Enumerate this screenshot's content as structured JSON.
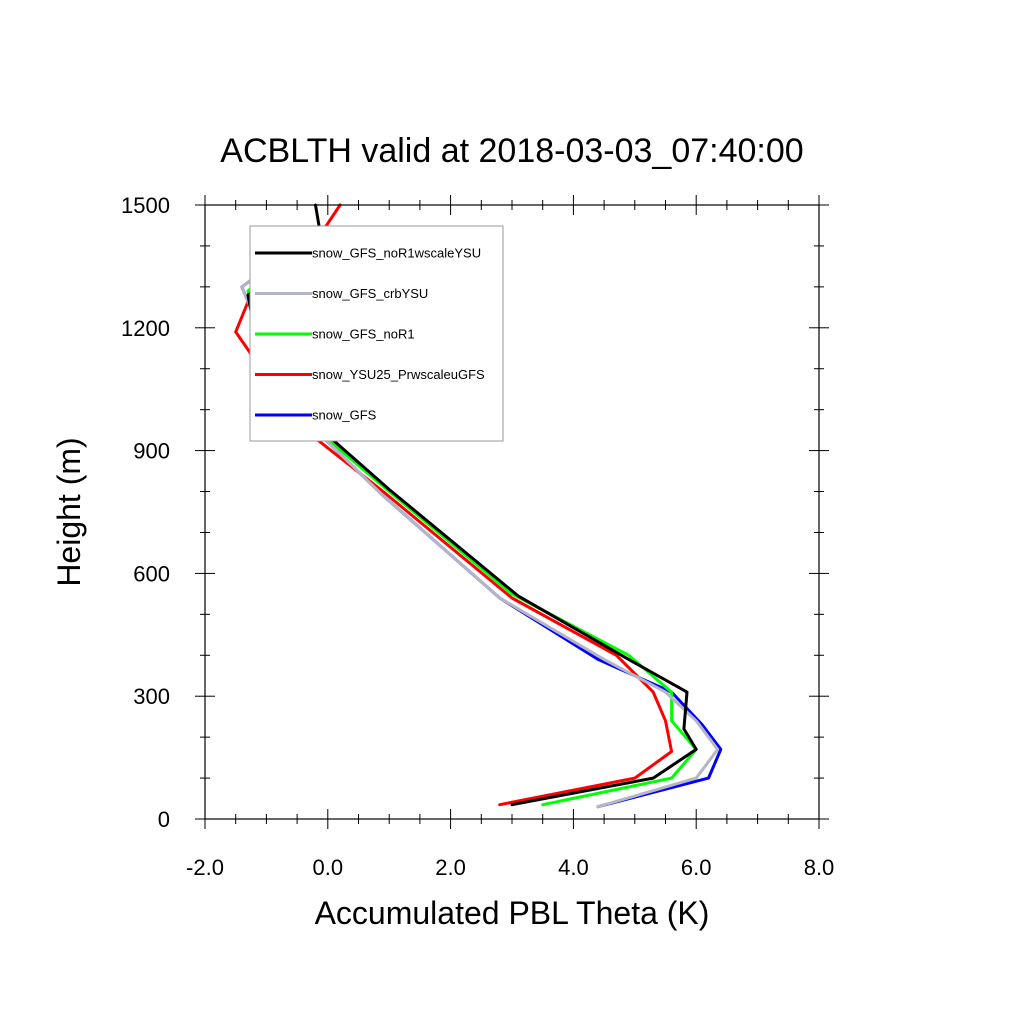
{
  "chart_data": {
    "type": "line",
    "title": "ACBLTH valid at 2018-03-03_07:40:00",
    "xlabel": "Accumulated PBL Theta (K)",
    "ylabel": "Height (m)",
    "xlim": [
      -2.0,
      8.0
    ],
    "ylim": [
      0,
      1500
    ],
    "x_ticks": [
      -2.0,
      0.0,
      2.0,
      4.0,
      6.0,
      8.0
    ],
    "x_tick_labels": [
      "-2.0",
      "0.0",
      "2.0",
      "4.0",
      "6.0",
      "8.0"
    ],
    "y_ticks": [
      0,
      300,
      600,
      900,
      1200,
      1500
    ],
    "y_tick_labels": [
      "0",
      "300",
      "600",
      "900",
      "1200",
      "1500"
    ],
    "legend_position": "top-left",
    "grid": false,
    "series": [
      {
        "name": "snow_GFS",
        "color": "#0000ff",
        "points": [
          [
            4.4,
            30
          ],
          [
            6.2,
            100
          ],
          [
            6.4,
            170
          ],
          [
            6.1,
            230
          ],
          [
            5.6,
            310
          ],
          [
            4.4,
            390
          ],
          [
            2.8,
            540
          ],
          [
            0.9,
            790
          ],
          [
            -0.2,
            950
          ],
          [
            -0.6,
            1020
          ],
          [
            -1.4,
            1300
          ],
          [
            -0.4,
            1410
          ]
        ]
      },
      {
        "name": "snow_YSU25_PrwscaleuGFS",
        "color": "#ff0000",
        "points": [
          [
            2.8,
            35
          ],
          [
            5.0,
            100
          ],
          [
            5.6,
            165
          ],
          [
            5.5,
            240
          ],
          [
            5.3,
            310
          ],
          [
            4.7,
            400
          ],
          [
            3.0,
            540
          ],
          [
            0.9,
            800
          ],
          [
            -0.2,
            930
          ],
          [
            -0.9,
            1060
          ],
          [
            -1.5,
            1190
          ],
          [
            -1.2,
            1300
          ],
          [
            -0.2,
            1410
          ],
          [
            0.2,
            1500
          ]
        ]
      },
      {
        "name": "snow_GFS_noR1",
        "color": "#00ff00",
        "points": [
          [
            3.5,
            35
          ],
          [
            5.6,
            100
          ],
          [
            6.0,
            170
          ],
          [
            5.6,
            240
          ],
          [
            5.6,
            310
          ],
          [
            4.9,
            400
          ],
          [
            3.0,
            550
          ],
          [
            1.0,
            800
          ],
          [
            -0.1,
            940
          ],
          [
            -0.5,
            1000
          ],
          [
            -1.1,
            1170
          ],
          [
            -1.3,
            1290
          ],
          [
            -0.4,
            1410
          ]
        ]
      },
      {
        "name": "snow_GFS_crbYSU",
        "color": "#b5b5c8",
        "points": [
          [
            4.4,
            30
          ],
          [
            6.0,
            100
          ],
          [
            6.35,
            170
          ],
          [
            6.0,
            240
          ],
          [
            5.5,
            310
          ],
          [
            4.5,
            390
          ],
          [
            2.8,
            540
          ],
          [
            0.9,
            790
          ],
          [
            -0.2,
            950
          ],
          [
            -0.6,
            1020
          ],
          [
            -1.4,
            1300
          ],
          [
            -0.4,
            1410
          ]
        ]
      },
      {
        "name": "snow_GFS_noR1wscaleYSU",
        "color": "#000000",
        "points": [
          [
            3.0,
            35
          ],
          [
            5.3,
            100
          ],
          [
            6.0,
            170
          ],
          [
            5.8,
            220
          ],
          [
            5.85,
            310
          ],
          [
            4.9,
            390
          ],
          [
            3.1,
            545
          ],
          [
            1.0,
            805
          ],
          [
            -0.1,
            950
          ],
          [
            -0.4,
            990
          ],
          [
            -1.2,
            1200
          ],
          [
            -1.3,
            1280
          ],
          [
            -0.2,
            1400
          ],
          [
            -0.1,
            1410
          ],
          [
            -0.2,
            1500
          ]
        ]
      }
    ],
    "legend_order": [
      "snow_GFS_noR1wscaleYSU",
      "snow_GFS_crbYSU",
      "snow_GFS_noR1",
      "snow_YSU25_PrwscaleuGFS",
      "snow_GFS"
    ]
  }
}
